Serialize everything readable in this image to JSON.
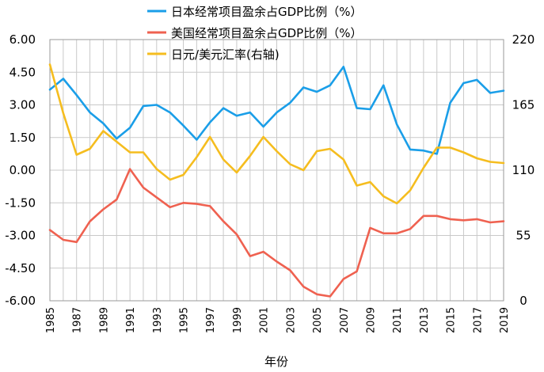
{
  "chart_data": {
    "type": "line",
    "title": "",
    "xlabel": "年份",
    "ylabel_left": "",
    "ylabel_right": "",
    "legend_position": "top",
    "grid": true,
    "x": [
      1985,
      1986,
      1987,
      1988,
      1989,
      1990,
      1991,
      1992,
      1993,
      1994,
      1995,
      1996,
      1997,
      1998,
      1999,
      2000,
      2001,
      2002,
      2003,
      2004,
      2005,
      2006,
      2007,
      2008,
      2009,
      2010,
      2011,
      2012,
      2013,
      2014,
      2015,
      2016,
      2017,
      2018,
      2019
    ],
    "x_tick_labels": [
      "1985",
      "1987",
      "1989",
      "1991",
      "1993",
      "1995",
      "1997",
      "1999",
      "2001",
      "2003",
      "2005",
      "2007",
      "2009",
      "2011",
      "2013",
      "2015",
      "2017",
      "2019"
    ],
    "y_left": {
      "range": [
        -6.0,
        6.0
      ],
      "ticks": [
        "6.00",
        "4.50",
        "3.00",
        "1.50",
        "0.00",
        "-1.50",
        "-3.00",
        "-4.50",
        "-6.00"
      ]
    },
    "y_right": {
      "range": [
        0,
        220
      ],
      "ticks": [
        "220",
        "165",
        "110",
        "55",
        "0"
      ]
    },
    "series": [
      {
        "name": "日本经常项目盈余占GDP比例（%）",
        "color": "#1a9ee8",
        "axis": "left",
        "values": [
          3.7,
          4.2,
          3.45,
          2.65,
          2.15,
          1.45,
          1.95,
          2.95,
          3.0,
          2.65,
          2.05,
          1.4,
          2.2,
          2.85,
          2.5,
          2.65,
          2.0,
          2.65,
          3.1,
          3.8,
          3.6,
          3.9,
          4.75,
          2.85,
          2.8,
          3.9,
          2.1,
          0.95,
          0.9,
          0.75,
          3.1,
          4.0,
          4.15,
          3.55,
          3.65
        ]
      },
      {
        "name": "美国经常项目盈余占GDP比例（%）",
        "color": "#ef6150",
        "axis": "left",
        "values": [
          -2.75,
          -3.2,
          -3.3,
          -2.35,
          -1.8,
          -1.35,
          0.05,
          -0.8,
          -1.25,
          -1.7,
          -1.5,
          -1.55,
          -1.65,
          -2.35,
          -2.95,
          -3.95,
          -3.75,
          -4.2,
          -4.6,
          -5.35,
          -5.7,
          -5.8,
          -5.0,
          -4.65,
          -2.65,
          -2.9,
          -2.9,
          -2.7,
          -2.1,
          -2.1,
          -2.25,
          -2.3,
          -2.25,
          -2.4,
          -2.35
        ]
      },
      {
        "name": "日元/美元汇率(右轴)",
        "color": "#f5bd1f",
        "axis": "right",
        "values": [
          199,
          158,
          123,
          128,
          143,
          134,
          125,
          125,
          111,
          102,
          106,
          121,
          138,
          119,
          108,
          122,
          138,
          126,
          115,
          110,
          126,
          128,
          119,
          97,
          100,
          88,
          82,
          93,
          112,
          129,
          129,
          125,
          120,
          117,
          116
        ]
      }
    ]
  }
}
